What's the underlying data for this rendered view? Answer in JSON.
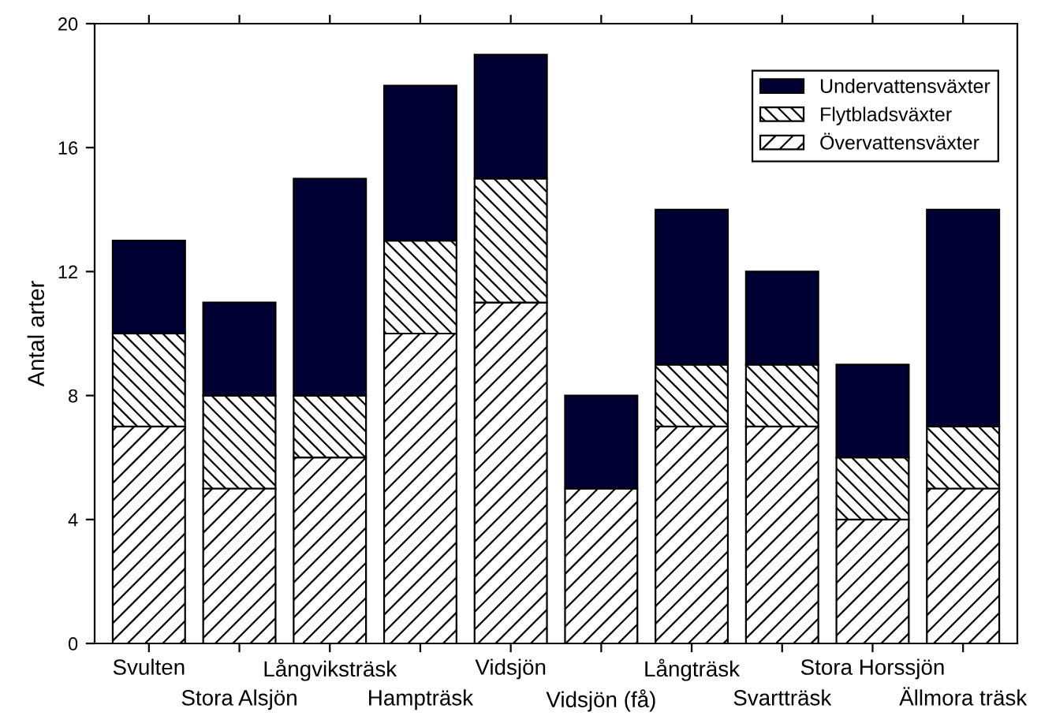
{
  "chart_data": {
    "type": "bar",
    "stacked": true,
    "ylabel": "Antal arter",
    "categories": [
      "Svulten",
      "Stora Alsjön",
      "Långviksträsk",
      "Hampträsk",
      "Vidsjön",
      "Vidsjön (få)",
      "Långträsk",
      "Svartträsk",
      "Stora Horssjön",
      "Ällmora träsk"
    ],
    "series": [
      {
        "name": "Övervattensväxter",
        "color": "#000000",
        "values": [
          7,
          5,
          6,
          10,
          11,
          5,
          7,
          7,
          4,
          5
        ]
      },
      {
        "name": "Flytbladsväxter",
        "color": "#000000",
        "values": [
          3,
          3,
          2,
          3,
          4,
          0,
          2,
          2,
          2,
          2
        ]
      },
      {
        "name": "Undervattensväxter",
        "color": "#000033",
        "values": [
          3,
          3,
          7,
          5,
          4,
          3,
          5,
          3,
          3,
          7
        ]
      }
    ],
    "ylim": [
      0,
      20
    ],
    "yticks": [
      0,
      4,
      8,
      12,
      16,
      20
    ],
    "grid": false,
    "legend": "top right"
  }
}
